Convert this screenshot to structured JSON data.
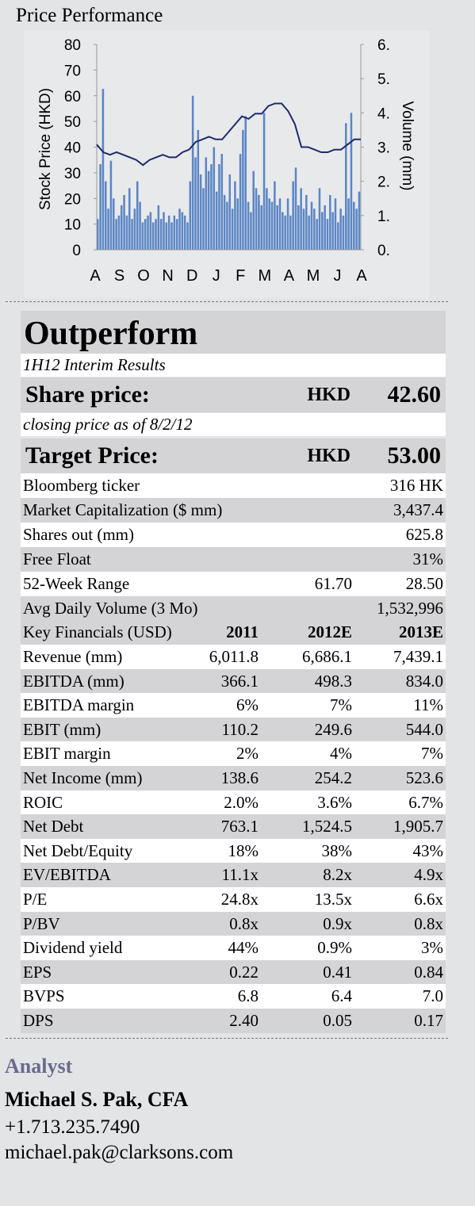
{
  "chart_title": "Price Performance",
  "chart_data": {
    "type": "bar+line",
    "y_left_label": "Stock Price (HKD)",
    "y_right_label": "Volume (mm)",
    "y_left_ticks": [
      "0",
      "10",
      "20",
      "30",
      "40",
      "50",
      "60",
      "70",
      "80"
    ],
    "y_right_ticks": [
      "0.",
      "1.",
      "2.",
      "3.",
      "4.",
      "5.",
      "6."
    ],
    "y_left_range": [
      0,
      80
    ],
    "y_right_range": [
      0,
      6
    ],
    "x_ticks": [
      "A",
      "S",
      "O",
      "N",
      "D",
      "J",
      "F",
      "M",
      "A",
      "M",
      "J",
      "A"
    ],
    "price_series": {
      "name": "Price",
      "values": [
        41,
        38,
        37,
        38,
        37,
        36,
        35,
        33,
        35,
        36,
        37,
        36,
        36,
        38,
        39,
        42,
        43,
        44,
        43,
        43,
        46,
        49,
        52,
        51,
        53,
        53,
        56,
        57,
        57,
        54,
        49,
        40,
        40,
        39,
        38,
        38,
        39,
        39,
        41,
        43,
        43
      ]
    },
    "volume_series": {
      "name": "Volume",
      "values": [
        0.9,
        2.5,
        4.7,
        2.0,
        1.2,
        2.6,
        1.5,
        0.9,
        1.0,
        1.3,
        1.6,
        1.0,
        1.8,
        0.9,
        1.2,
        2.0,
        1.4,
        0.8,
        0.9,
        1.0,
        1.1,
        0.8,
        0.9,
        1.3,
        0.9,
        1.1,
        0.8,
        1.0,
        0.8,
        1.0,
        0.9,
        1.2,
        1.1,
        1.0,
        0.8,
        2.0,
        4.5,
        2.7,
        3.5,
        2.2,
        1.8,
        2.7,
        2.3,
        2.5,
        3.0,
        1.7,
        2.5,
        2.8,
        1.6,
        1.4,
        2.2,
        1.2,
        2.0,
        1.5,
        2.8,
        3.5,
        3.9,
        1.4,
        1.1,
        2.3,
        1.8,
        1.6,
        1.3,
        4.0,
        1.8,
        1.5,
        1.4,
        2.0,
        1.3,
        1.5,
        1.1,
        1.0,
        1.5,
        1.0,
        2.0,
        2.4,
        1.3,
        1.8,
        1.2,
        1.6,
        1.0,
        1.4,
        1.2,
        0.9,
        1.8,
        1.1,
        1.3,
        0.9,
        1.6,
        1.1,
        1.5,
        0.8,
        1.2,
        1.0,
        3.7,
        1.5,
        4.0,
        1.4,
        1.2,
        1.7
      ]
    }
  },
  "rating": "Outperform",
  "subtitle": "1H12 Interim Results",
  "share_price": {
    "label": "Share price:",
    "currency": "HKD",
    "value": "42.60"
  },
  "closing_note": "closing price as of 8/2/12",
  "target_price": {
    "label": "Target Price:",
    "currency": "HKD",
    "value": "53.00"
  },
  "info_rows": [
    {
      "label": "Bloomberg ticker",
      "c2": "",
      "c3": "316 HK"
    },
    {
      "label": "Market Capitalization ($ mm)",
      "c2": "",
      "c3": "3,437.4"
    },
    {
      "label": "Shares out (mm)",
      "c2": "",
      "c3": "625.8"
    },
    {
      "label": "Free Float",
      "c2": "",
      "c3": "31%"
    },
    {
      "label": "52-Week Range",
      "c2": "61.70",
      "c3": "28.50"
    },
    {
      "label": "Avg Daily Volume (3 Mo)",
      "c2": "",
      "c3": "1,532,996"
    }
  ],
  "financials_header": {
    "label": "Key Financials (USD)",
    "c1": "2011",
    "c2": "2012E",
    "c3": "2013E"
  },
  "financials": [
    {
      "label": "Revenue (mm)",
      "c1": "6,011.8",
      "c2": "6,686.1",
      "c3": "7,439.1"
    },
    {
      "label": "EBITDA (mm)",
      "c1": "366.1",
      "c2": "498.3",
      "c3": "834.0"
    },
    {
      "label": "EBITDA margin",
      "c1": "6%",
      "c2": "7%",
      "c3": "11%"
    },
    {
      "label": "EBIT (mm)",
      "c1": "110.2",
      "c2": "249.6",
      "c3": "544.0"
    },
    {
      "label": "EBIT margin",
      "c1": "2%",
      "c2": "4%",
      "c3": "7%"
    },
    {
      "label": "Net Income (mm)",
      "c1": "138.6",
      "c2": "254.2",
      "c3": "523.6"
    },
    {
      "label": "ROIC",
      "c1": "2.0%",
      "c2": "3.6%",
      "c3": "6.7%"
    },
    {
      "label": "Net Debt",
      "c1": "763.1",
      "c2": "1,524.5",
      "c3": "1,905.7"
    },
    {
      "label": "Net Debt/Equity",
      "c1": "18%",
      "c2": "38%",
      "c3": "43%"
    },
    {
      "label": "EV/EBITDA",
      "c1": "11.1x",
      "c2": "8.2x",
      "c3": "4.9x"
    },
    {
      "label": "P/E",
      "c1": "24.8x",
      "c2": "13.5x",
      "c3": "6.6x"
    },
    {
      "label": "P/BV",
      "c1": "0.8x",
      "c2": "0.9x",
      "c3": "0.8x"
    },
    {
      "label": "Dividend yield",
      "c1": "44%",
      "c2": "0.9%",
      "c3": "3%"
    },
    {
      "label": "EPS",
      "c1": "0.22",
      "c2": "0.41",
      "c3": "0.84"
    },
    {
      "label": "BVPS",
      "c1": "6.8",
      "c2": "6.4",
      "c3": "7.0"
    },
    {
      "label": "DPS",
      "c1": "2.40",
      "c2": "0.05",
      "c3": "0.17"
    }
  ],
  "analyst": {
    "heading": "Analyst",
    "name": "Michael S. Pak, CFA",
    "phone": "+1.713.235.7490",
    "email": "michael.pak@clarksons.com"
  },
  "colors": {
    "background": "#e3e4e6",
    "shade": "#d4d4d6",
    "bar": "#5b86c5",
    "line": "#1f2a6b",
    "analyst": "#6a6a8c"
  }
}
